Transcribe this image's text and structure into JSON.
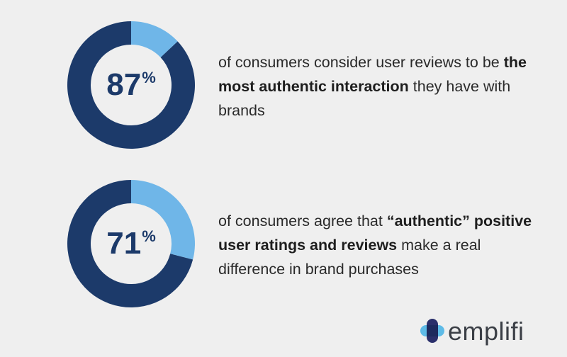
{
  "colors": {
    "ring_main": "#1c3a6a",
    "ring_accent": "#6fb6e8",
    "background": "#efefef"
  },
  "chart_data": [
    {
      "type": "pie",
      "values": [
        87,
        13
      ],
      "value_label": "87",
      "unit": "%",
      "text": {
        "pre": "of consumers consider user reviews to be ",
        "bold": "the most authentic interaction",
        "post": " they have with brands"
      }
    },
    {
      "type": "pie",
      "values": [
        71,
        29
      ],
      "value_label": "71",
      "unit": "%",
      "text": {
        "pre": "of consumers agree that ",
        "bold": "“authentic” positive user ratings and reviews",
        "post": " make a real difference in brand purchases"
      }
    }
  ],
  "brand": {
    "logo_text": "emplifi",
    "logo_mark_icon": "emplifi-logo-icon"
  }
}
